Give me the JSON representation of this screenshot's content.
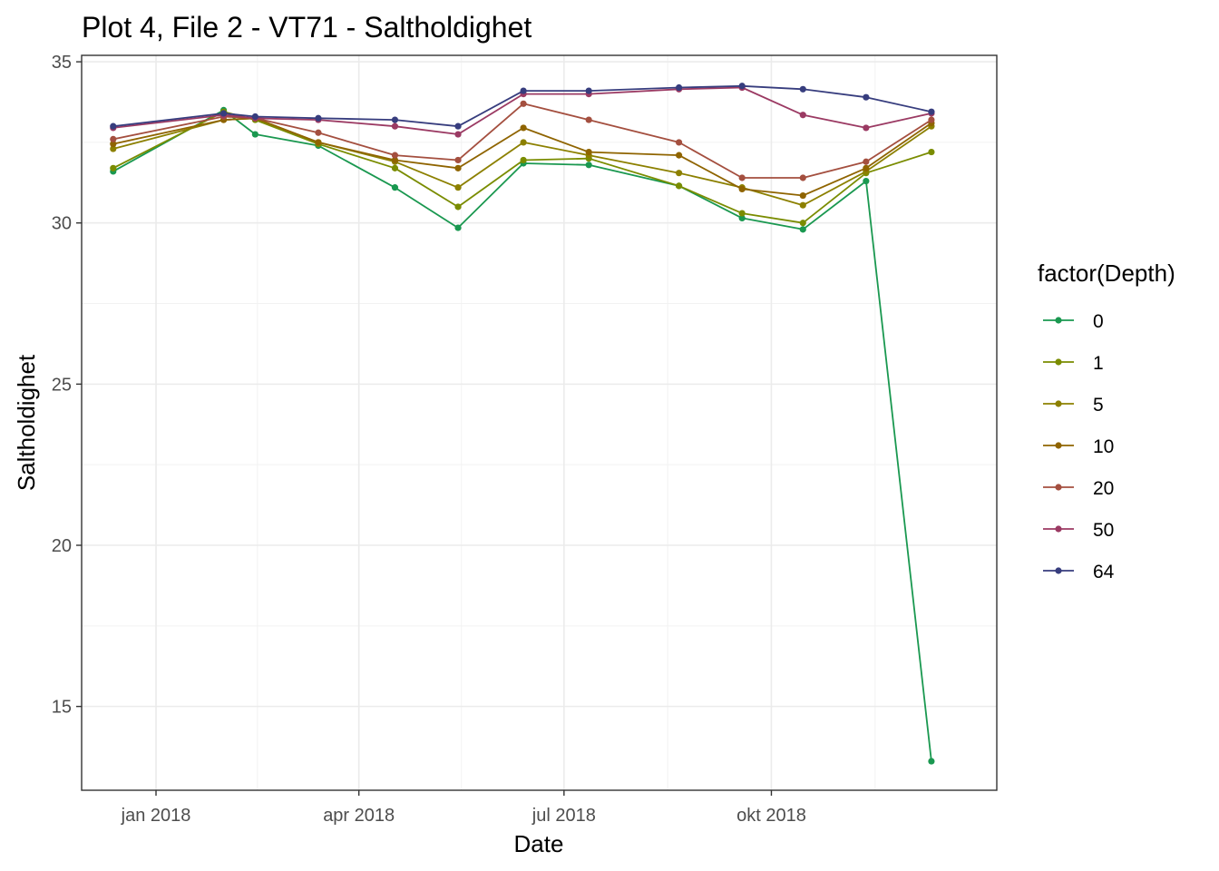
{
  "chart_data": {
    "type": "line",
    "title": "Plot 4, File 2 - VT71  -  Saltholdighet",
    "xlabel": "Date",
    "ylabel": "Saltholdighet",
    "ylim": [
      12.4,
      35.2
    ],
    "xlim": [
      "2017-11-29",
      "2019-01-09"
    ],
    "y_ticks": [
      15,
      20,
      25,
      30,
      35
    ],
    "x_ticks": [
      {
        "date": "2018-01-01",
        "label": "jan 2018"
      },
      {
        "date": "2018-04-01",
        "label": "apr 2018"
      },
      {
        "date": "2018-07-01",
        "label": "jul 2018"
      },
      {
        "date": "2018-10-01",
        "label": "okt 2018"
      }
    ],
    "grid": true,
    "legend": {
      "title": "factor(Depth)",
      "position": "right"
    },
    "x": [
      "2017-12-13",
      "2018-01-31",
      "2018-02-14",
      "2018-03-14",
      "2018-04-17",
      "2018-05-15",
      "2018-06-13",
      "2018-07-12",
      "2018-08-21",
      "2018-09-18",
      "2018-10-15",
      "2018-11-12",
      "2018-12-11"
    ],
    "series": [
      {
        "name": "0",
        "color": "#1a9850",
        "values": [
          31.6,
          33.5,
          32.75,
          32.4,
          31.1,
          29.85,
          31.85,
          31.8,
          31.15,
          30.15,
          29.8,
          31.3,
          13.3
        ]
      },
      {
        "name": "1",
        "color": "#7a8c00",
        "values": [
          31.7,
          33.45,
          33.2,
          32.45,
          31.7,
          30.5,
          31.95,
          32.0,
          31.15,
          30.3,
          30.0,
          31.55,
          32.2
        ]
      },
      {
        "name": "5",
        "color": "#8c8000",
        "values": [
          32.3,
          33.2,
          33.25,
          32.5,
          31.9,
          31.1,
          32.5,
          32.1,
          31.55,
          31.1,
          30.55,
          31.6,
          33.0
        ]
      },
      {
        "name": "10",
        "color": "#8f6400",
        "values": [
          32.45,
          33.2,
          33.25,
          32.5,
          31.95,
          31.7,
          32.95,
          32.2,
          32.1,
          31.05,
          30.85,
          31.7,
          33.1
        ]
      },
      {
        "name": "20",
        "color": "#a44f3f",
        "values": [
          32.6,
          33.3,
          33.25,
          32.8,
          32.1,
          31.95,
          33.7,
          33.2,
          32.5,
          31.4,
          31.4,
          31.9,
          33.2
        ]
      },
      {
        "name": "50",
        "color": "#9b3a63",
        "values": [
          32.95,
          33.35,
          33.25,
          33.2,
          33.0,
          32.75,
          34.0,
          34.0,
          34.15,
          34.2,
          33.35,
          32.95,
          33.4
        ]
      },
      {
        "name": "64",
        "color": "#373d7e",
        "values": [
          33.0,
          33.4,
          33.3,
          33.25,
          33.2,
          33.0,
          34.1,
          34.1,
          34.2,
          34.25,
          34.15,
          33.9,
          33.45
        ]
      }
    ]
  }
}
